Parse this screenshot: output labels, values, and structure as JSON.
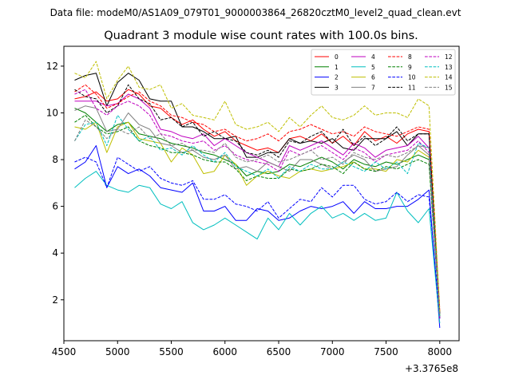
{
  "figure_title": "Data file: modeM0/AS1A09_079T01_9000003864_26820cztM0_level2_quad_clean.evt",
  "chart_data": {
    "type": "line",
    "title": "Quadrant 3 module wise count rates with 100.0s bins.",
    "xlabel": "",
    "ylabel": "",
    "x_offset_label": "+3.3765e8",
    "xlim": [
      4500,
      8180
    ],
    "ylim": [
      0.25,
      12.85
    ],
    "xticks": [
      4500,
      5000,
      5500,
      6000,
      6500,
      7000,
      7500,
      8000
    ],
    "xtick_labels": [
      "4500",
      "5000",
      "5500",
      "6000",
      "6500",
      "7000",
      "7500",
      "8000"
    ],
    "yticks": [
      2,
      4,
      6,
      8,
      10,
      12
    ],
    "ytick_labels": [
      "2",
      "4",
      "6",
      "8",
      "10",
      "12"
    ],
    "grid": false,
    "legend_placement": "top-right",
    "x": [
      4600,
      4700,
      4800,
      4900,
      5000,
      5100,
      5200,
      5300,
      5400,
      5500,
      5600,
      5700,
      5800,
      5900,
      6000,
      6100,
      6200,
      6300,
      6400,
      6500,
      6600,
      6700,
      6800,
      6900,
      7000,
      7100,
      7200,
      7300,
      7400,
      7500,
      7600,
      7700,
      7800,
      7900,
      8000
    ],
    "series": [
      {
        "name": "0",
        "color": "#ff0000",
        "dash": "solid",
        "values": [
          10.6,
          10.7,
          10.9,
          10.5,
          10.6,
          11.0,
          10.8,
          10.3,
          10.2,
          9.8,
          9.5,
          9.7,
          9.3,
          9.0,
          9.2,
          8.8,
          8.6,
          8.4,
          8.5,
          8.3,
          8.9,
          9.0,
          8.8,
          9.1,
          8.7,
          9.0,
          8.6,
          9.2,
          8.8,
          9.0,
          8.7,
          9.1,
          9.3,
          9.2,
          1.5
        ]
      },
      {
        "name": "1",
        "color": "#008000",
        "dash": "solid",
        "values": [
          10.2,
          10.0,
          9.6,
          9.2,
          9.5,
          9.6,
          9.1,
          9.0,
          8.9,
          8.7,
          8.6,
          8.5,
          8.3,
          8.2,
          8.0,
          7.8,
          7.3,
          7.5,
          7.4,
          7.5,
          7.8,
          7.7,
          7.9,
          8.1,
          7.9,
          7.6,
          8.0,
          7.8,
          7.7,
          7.9,
          7.8,
          8.0,
          8.2,
          8.0,
          1.3
        ]
      },
      {
        "name": "2",
        "color": "#0000ff",
        "dash": "solid",
        "values": [
          7.6,
          7.9,
          8.6,
          6.8,
          7.7,
          7.4,
          7.6,
          7.3,
          6.8,
          6.7,
          6.6,
          7.0,
          5.8,
          5.8,
          6.0,
          5.4,
          5.4,
          5.9,
          5.8,
          5.4,
          5.5,
          5.8,
          6.0,
          5.9,
          6.0,
          6.2,
          5.7,
          6.2,
          5.9,
          5.9,
          6.0,
          6.0,
          6.3,
          6.7,
          0.8
        ]
      },
      {
        "name": "3",
        "color": "#000000",
        "dash": "solid",
        "values": [
          11.4,
          11.6,
          11.7,
          10.3,
          11.3,
          11.7,
          11.4,
          10.6,
          10.5,
          10.5,
          9.4,
          9.4,
          9.2,
          8.9,
          8.9,
          9.0,
          8.1,
          8.1,
          8.3,
          8.3,
          8.9,
          8.7,
          8.8,
          8.7,
          8.9,
          8.5,
          8.4,
          8.9,
          8.9,
          8.9,
          9.2,
          8.6,
          9.1,
          9.1,
          1.4
        ]
      },
      {
        "name": "4",
        "color": "#bf00bf",
        "dash": "solid",
        "values": [
          10.5,
          10.5,
          10.5,
          10.3,
          10.4,
          10.8,
          10.6,
          10.2,
          9.3,
          9.2,
          9.0,
          8.9,
          9.1,
          8.6,
          8.9,
          8.6,
          8.3,
          8.1,
          7.9,
          7.7,
          8.6,
          8.4,
          8.6,
          8.8,
          8.5,
          8.2,
          8.7,
          8.5,
          8.1,
          8.4,
          8.5,
          8.6,
          9.0,
          8.5,
          1.2
        ]
      },
      {
        "name": "5",
        "color": "#00bfbf",
        "dash": "solid",
        "values": [
          6.8,
          7.2,
          7.5,
          6.9,
          6.7,
          6.6,
          6.9,
          6.8,
          6.1,
          5.9,
          6.2,
          5.3,
          5.0,
          5.2,
          5.5,
          5.2,
          4.9,
          4.6,
          5.5,
          5.0,
          5.7,
          5.2,
          5.7,
          6.0,
          5.5,
          5.7,
          5.4,
          5.7,
          5.4,
          5.5,
          6.6,
          5.8,
          5.3,
          5.9,
          1.0
        ]
      },
      {
        "name": "6",
        "color": "#bfbf00",
        "dash": "solid",
        "values": [
          9.4,
          9.3,
          9.6,
          8.3,
          9.4,
          9.6,
          8.9,
          8.8,
          8.7,
          7.9,
          8.5,
          8.2,
          7.4,
          7.5,
          8.2,
          7.8,
          6.9,
          7.3,
          7.5,
          7.3,
          7.2,
          7.5,
          7.6,
          7.5,
          7.6,
          7.7,
          7.9,
          7.6,
          7.6,
          7.5,
          8.0,
          7.9,
          8.4,
          8.1,
          1.3
        ]
      },
      {
        "name": "7",
        "color": "#808080",
        "dash": "solid",
        "values": [
          10.1,
          10.3,
          10.2,
          9.2,
          9.3,
          10.0,
          9.5,
          9.3,
          8.7,
          8.6,
          8.3,
          8.4,
          8.1,
          8.0,
          8.2,
          7.6,
          7.7,
          7.5,
          7.9,
          7.7,
          7.5,
          8.0,
          8.0,
          7.8,
          7.6,
          7.9,
          8.2,
          8.0,
          7.5,
          7.6,
          7.7,
          8.2,
          8.6,
          8.2,
          1.2
        ]
      },
      {
        "name": "8",
        "color": "#ff0000",
        "dash": "dashed",
        "values": [
          10.9,
          11.2,
          10.8,
          10.2,
          10.4,
          10.7,
          10.9,
          10.5,
          10.3,
          9.9,
          9.8,
          9.6,
          9.5,
          9.2,
          9.3,
          9.0,
          8.8,
          8.9,
          9.1,
          8.8,
          9.2,
          9.3,
          9.5,
          9.3,
          9.1,
          9.2,
          9.0,
          9.4,
          9.2,
          9.1,
          9.0,
          9.2,
          9.4,
          9.3,
          1.6
        ]
      },
      {
        "name": "9",
        "color": "#008000",
        "dash": "dashed",
        "values": [
          9.6,
          9.9,
          9.4,
          9.1,
          9.2,
          9.4,
          8.8,
          8.6,
          8.5,
          8.3,
          8.3,
          8.2,
          8.0,
          7.9,
          7.9,
          7.6,
          7.1,
          7.3,
          7.2,
          7.2,
          7.6,
          7.5,
          7.6,
          7.8,
          7.7,
          7.4,
          7.9,
          7.6,
          7.5,
          7.7,
          7.6,
          7.8,
          8.0,
          7.8,
          1.3
        ]
      },
      {
        "name": "10",
        "color": "#0000ff",
        "dash": "dashed",
        "values": [
          7.9,
          8.1,
          7.9,
          6.8,
          8.1,
          7.8,
          7.5,
          7.7,
          7.2,
          7.0,
          6.9,
          7.1,
          6.3,
          6.3,
          6.5,
          6.1,
          6.0,
          5.8,
          6.2,
          5.5,
          5.9,
          6.3,
          6.2,
          6.8,
          6.4,
          6.9,
          6.9,
          6.3,
          6.1,
          6.2,
          6.6,
          6.2,
          6.5,
          6.4,
          1.2
        ]
      },
      {
        "name": "11",
        "color": "#000000",
        "dash": "dashed",
        "values": [
          11.0,
          10.7,
          10.6,
          10.0,
          10.3,
          11.2,
          10.6,
          10.4,
          9.7,
          9.8,
          9.4,
          9.6,
          9.0,
          9.2,
          8.9,
          8.8,
          8.3,
          8.2,
          8.4,
          8.1,
          8.8,
          8.7,
          9.0,
          9.2,
          8.7,
          9.3,
          8.6,
          9.0,
          8.6,
          8.9,
          9.4,
          8.8,
          9.1,
          9.1,
          1.4
        ]
      },
      {
        "name": "12",
        "color": "#bf00bf",
        "dash": "dashed",
        "values": [
          10.8,
          11.0,
          10.2,
          9.9,
          10.3,
          10.5,
          10.3,
          9.9,
          9.1,
          9.0,
          8.8,
          8.7,
          8.8,
          8.4,
          8.6,
          8.2,
          8.0,
          7.9,
          7.8,
          7.5,
          8.4,
          8.2,
          8.4,
          8.6,
          8.3,
          8.0,
          8.5,
          8.3,
          7.9,
          8.2,
          8.3,
          8.4,
          8.8,
          8.3,
          1.2
        ]
      },
      {
        "name": "13",
        "color": "#00bfbf",
        "dash": "dashed",
        "values": [
          8.8,
          9.5,
          9.6,
          8.6,
          9.9,
          9.3,
          8.8,
          9.0,
          8.4,
          8.5,
          8.2,
          8.6,
          8.2,
          7.9,
          8.3,
          7.7,
          7.5,
          7.3,
          7.6,
          7.2,
          7.7,
          7.5,
          7.8,
          7.6,
          7.6,
          7.9,
          7.7,
          7.5,
          7.9,
          7.6,
          7.9,
          7.4,
          8.7,
          8.5,
          1.3
        ]
      },
      {
        "name": "14",
        "color": "#bfbf00",
        "dash": "dashed",
        "values": [
          11.7,
          11.5,
          12.2,
          10.6,
          11.4,
          12.0,
          11.1,
          11.0,
          11.2,
          10.2,
          10.4,
          9.9,
          9.8,
          9.7,
          10.5,
          9.5,
          9.3,
          9.4,
          9.6,
          9.2,
          9.8,
          9.4,
          9.9,
          10.3,
          9.8,
          9.7,
          9.9,
          10.3,
          9.9,
          10.0,
          10.0,
          9.8,
          10.6,
          10.3,
          1.5
        ]
      },
      {
        "name": "15",
        "color": "#808080",
        "dash": "dashed",
        "values": [
          8.8,
          9.7,
          9.4,
          8.9,
          9.3,
          9.1,
          9.4,
          8.9,
          9.1,
          8.6,
          8.7,
          8.4,
          8.4,
          8.3,
          8.7,
          8.1,
          7.9,
          8.0,
          8.2,
          7.9,
          8.0,
          8.2,
          8.4,
          8.0,
          8.1,
          7.8,
          8.3,
          8.1,
          8.0,
          8.2,
          8.1,
          8.3,
          8.6,
          8.5,
          1.3
        ]
      }
    ]
  }
}
